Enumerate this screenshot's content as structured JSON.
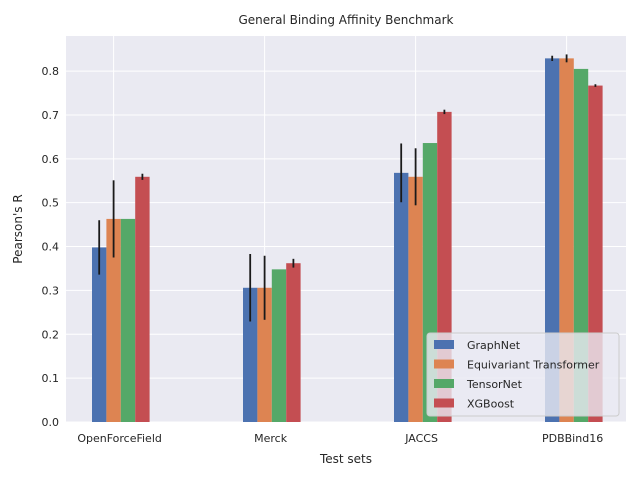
{
  "chart_data": {
    "type": "bar",
    "title": "General Binding Affinity Benchmark",
    "xlabel": "Test sets",
    "ylabel": "Pearson's R",
    "ylim": [
      0,
      0.88
    ],
    "yticks": [
      0.0,
      0.1,
      0.2,
      0.3,
      0.4,
      0.5,
      0.6,
      0.7,
      0.8
    ],
    "ytick_labels": [
      "0.0",
      "0.1",
      "0.2",
      "0.3",
      "0.4",
      "0.5",
      "0.6",
      "0.7",
      "0.8"
    ],
    "grid": true,
    "legend_position": "lower-right",
    "categories": [
      "OpenForceField",
      "Merck",
      "JACCS",
      "PDBBind16"
    ],
    "series": [
      {
        "name": "GraphNet",
        "color": "#4c72b0",
        "values": [
          0.398,
          0.306,
          0.568,
          0.829
        ],
        "errors": [
          0.062,
          0.077,
          0.067,
          0.006
        ]
      },
      {
        "name": "Equivariant Transformer",
        "color": "#dd8452",
        "values": [
          0.463,
          0.306,
          0.559,
          0.829
        ],
        "errors": [
          0.088,
          0.073,
          0.065,
          0.009
        ]
      },
      {
        "name": "TensorNet",
        "color": "#55a868",
        "values": [
          0.463,
          0.348,
          0.636,
          0.805
        ],
        "errors": [
          0,
          0,
          0,
          0
        ]
      },
      {
        "name": "XGBoost",
        "color": "#c44e52",
        "values": [
          0.559,
          0.362,
          0.707,
          0.767
        ],
        "errors": [
          0.007,
          0.01,
          0.005,
          0.003
        ]
      }
    ]
  }
}
